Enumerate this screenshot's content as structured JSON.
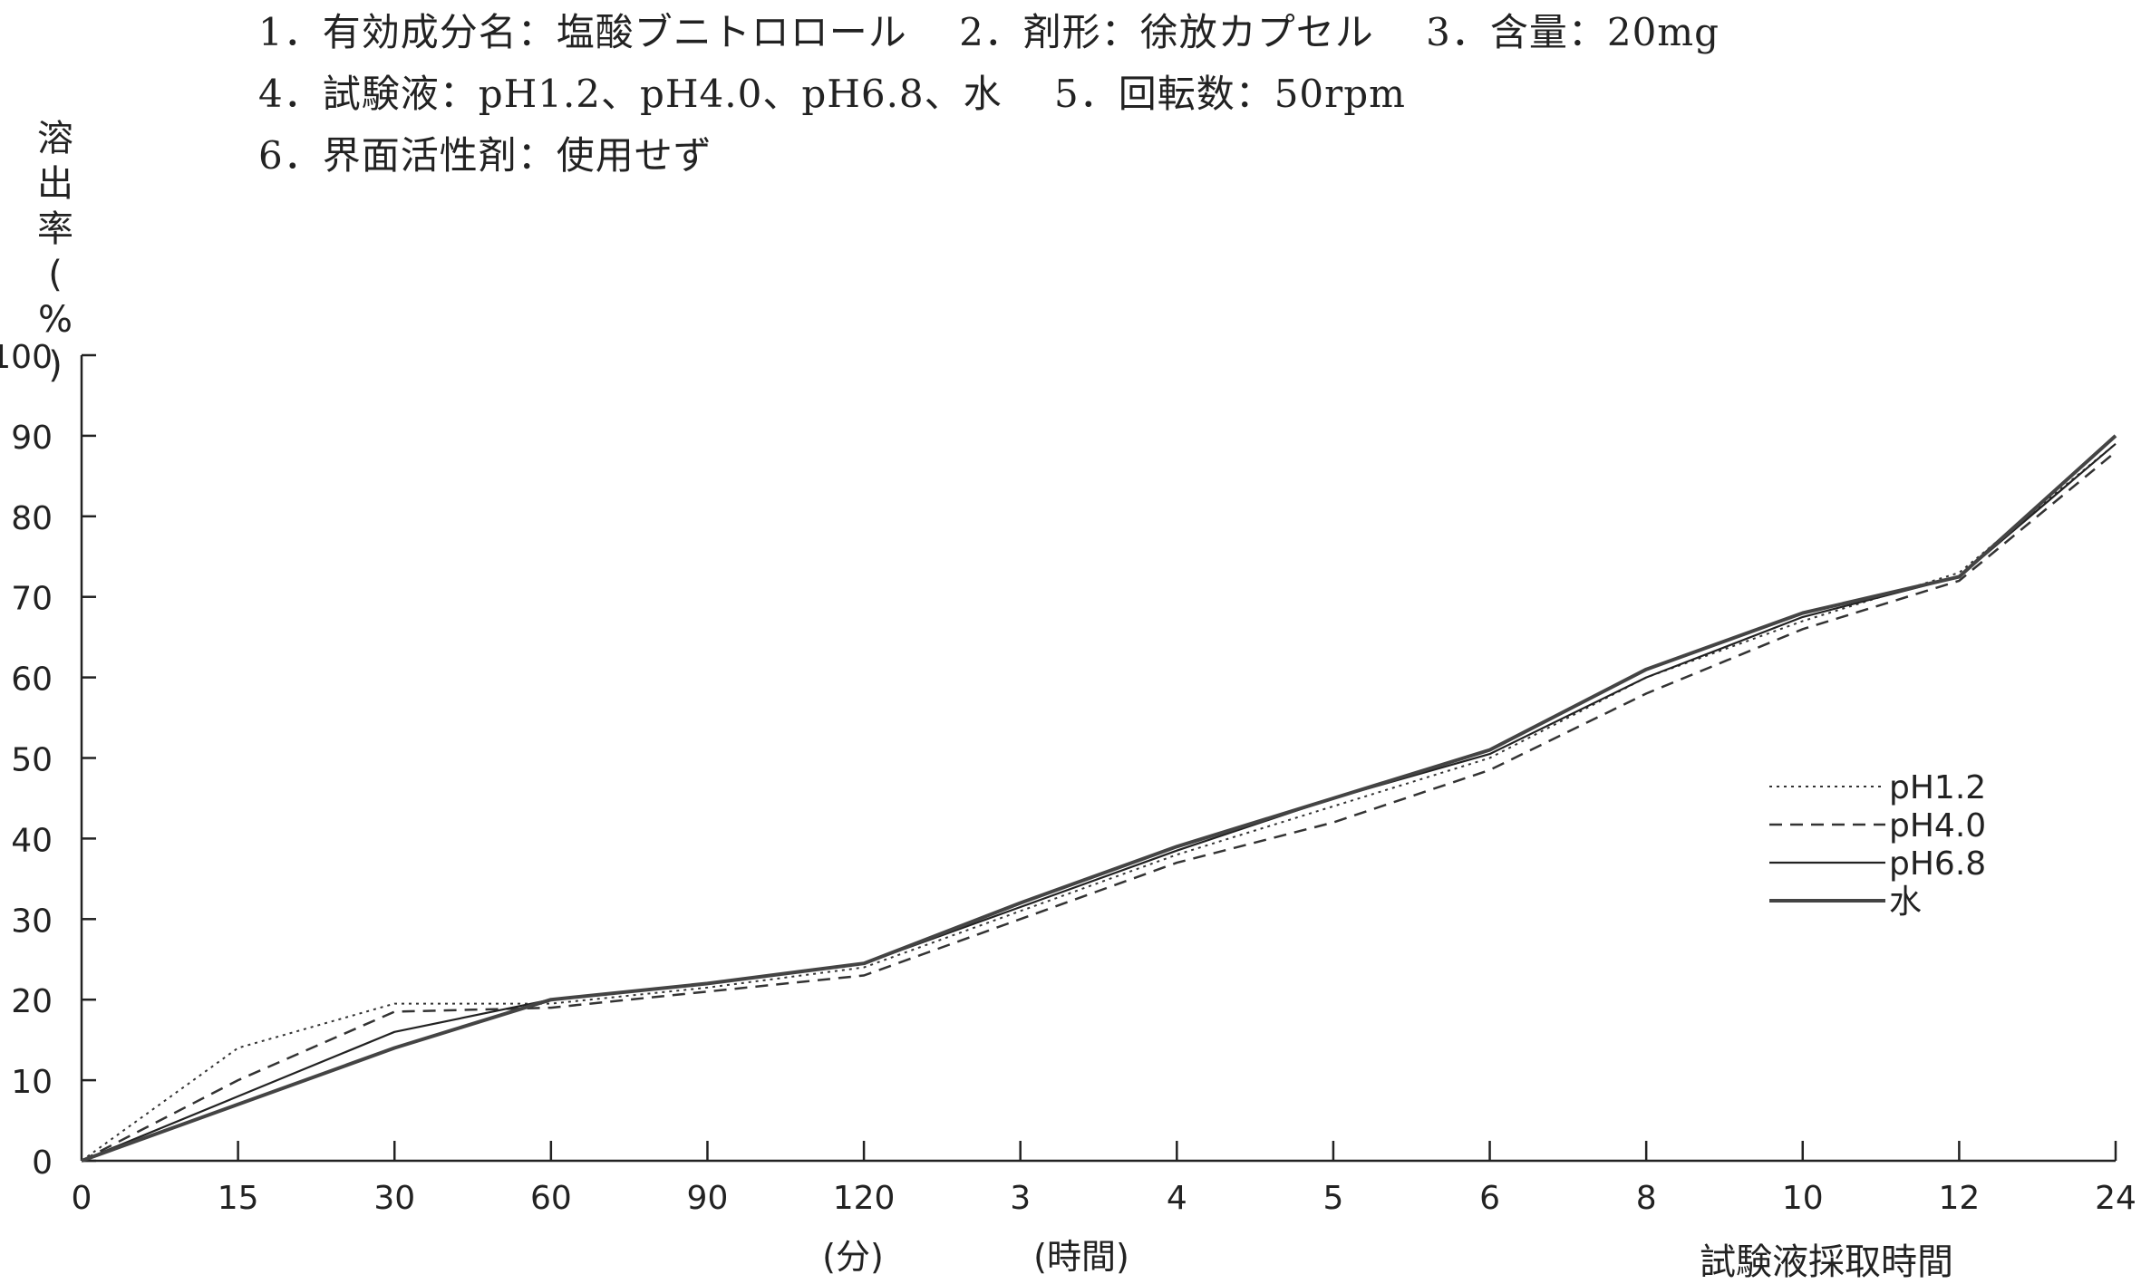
{
  "header": {
    "line1": "1．有効成分名：塩酸ブニトロロール　 2．剤形：徐放カプセル　 3．含量：20mg",
    "line2": "4．試験液：pH1.2、pH4.0、pH6.8、水　 5．回転数：50rpm",
    "line3": "6．界面活性剤：使用せず"
  },
  "chart_data": {
    "type": "line",
    "title": "",
    "ylabel": "溶出率(%)",
    "xlabel": "試験液採取時間",
    "x_unit_minutes": "(分)",
    "x_unit_hours": "(時間)",
    "ylim": [
      0,
      100
    ],
    "yticks": [
      0,
      10,
      20,
      30,
      40,
      50,
      60,
      70,
      80,
      90,
      100
    ],
    "categories": [
      "0",
      "15",
      "30",
      "60",
      "90",
      "120",
      "3",
      "4",
      "5",
      "6",
      "8",
      "10",
      "12",
      "24"
    ],
    "grid": false,
    "legend_position": "right",
    "series": [
      {
        "name": "pH1.2",
        "style": "dotted",
        "values": [
          0,
          14,
          19.5,
          19.5,
          21.5,
          24,
          31,
          38,
          44,
          50,
          60,
          67,
          73,
          89
        ]
      },
      {
        "name": "pH4.0",
        "style": "dashed",
        "values": [
          0,
          10,
          18.5,
          19,
          21,
          23,
          30,
          37,
          42,
          48.5,
          58,
          66,
          72,
          88
        ]
      },
      {
        "name": "pH6.8",
        "style": "solid",
        "values": [
          0,
          8,
          16,
          20,
          22,
          24.5,
          31.5,
          38.5,
          45,
          50.5,
          60,
          67.5,
          72.5,
          89
        ]
      },
      {
        "name": "水",
        "style": "solid-bold",
        "values": [
          0,
          7,
          14,
          20,
          22,
          24.5,
          32,
          39,
          45,
          51,
          61,
          68,
          72.5,
          90
        ]
      }
    ]
  }
}
